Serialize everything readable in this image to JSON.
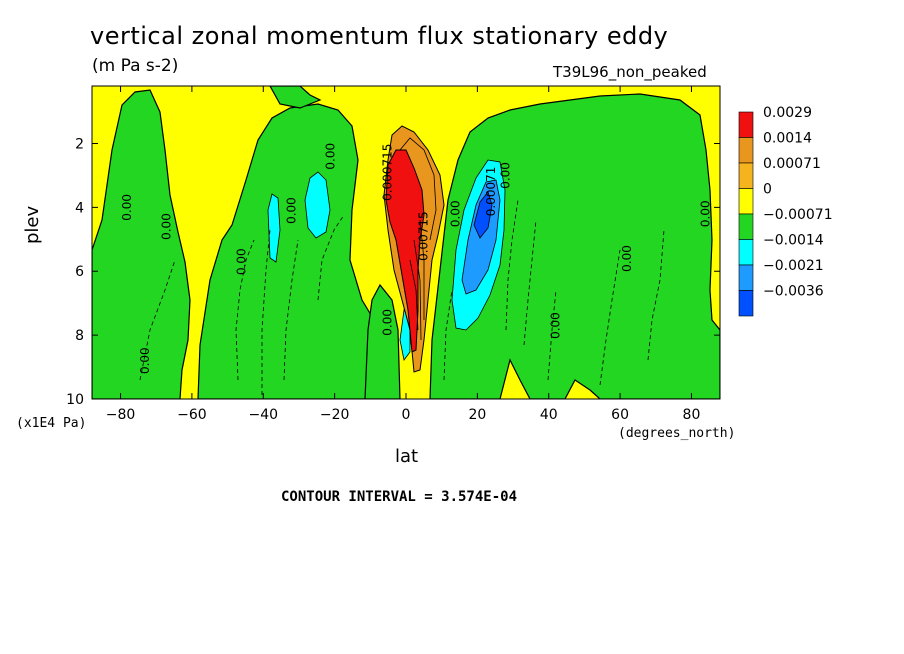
{
  "chart_data": {
    "type": "heatmap",
    "title": "vertical zonal momentum flux stationary eddy",
    "subtitle": "(m Pa s-2)",
    "dataset": "T39L96_non_peaked",
    "xlabel": "lat",
    "ylabel": "plev",
    "x_units": "(degrees_north)",
    "y_units": "(x1E4 Pa)",
    "xlim": [
      -88,
      88
    ],
    "ylim": [
      10,
      0.2
    ],
    "x_ticks": [
      -80,
      -60,
      -40,
      -20,
      0,
      20,
      40,
      60,
      80
    ],
    "y_ticks": [
      2,
      4,
      6,
      8,
      10
    ],
    "contour_interval_text": "CONTOUR INTERVAL = 3.574E-04",
    "legend": {
      "placement": "right",
      "levels": [
        {
          "label": "0.0029",
          "color": "#f01010"
        },
        {
          "label": "0.0014",
          "color": "#e8961e"
        },
        {
          "label": "0.00071",
          "color": "#f5b41e"
        },
        {
          "label": "0",
          "color": "#ffff00"
        },
        {
          "label": "-0.00071",
          "color": "#22d622"
        },
        {
          "label": "-0.0014",
          "color": "#00ffff"
        },
        {
          "label": "-0.0021",
          "color": "#1e9bff"
        },
        {
          "label": "-0.0036",
          "color": "#0050ff"
        }
      ]
    },
    "contour_labels": [
      {
        "text": "0.00",
        "lat": -77,
        "plev": 4.0
      },
      {
        "text": "0.00",
        "lat": -66,
        "plev": 4.6
      },
      {
        "text": "0.00",
        "lat": -72,
        "plev": 8.8
      },
      {
        "text": "0.00",
        "lat": -45,
        "plev": 5.7
      },
      {
        "text": "0.00",
        "lat": -31,
        "plev": 4.1
      },
      {
        "text": "0.00",
        "lat": -20,
        "plev": 2.4
      },
      {
        "text": "0.000715",
        "lat": -4,
        "plev": 2.9
      },
      {
        "text": "0.00",
        "lat": -4,
        "plev": 7.6
      },
      {
        "text": "0.00715",
        "lat": 6,
        "plev": 4.9
      },
      {
        "text": "0.00",
        "lat": 15,
        "plev": 4.2
      },
      {
        "text": "0.00071",
        "lat": 25,
        "plev": 3.5
      },
      {
        "text": "0.00",
        "lat": 29,
        "plev": 3.0
      },
      {
        "text": "0.00",
        "lat": 43,
        "plev": 7.7
      },
      {
        "text": "0.00",
        "lat": 63,
        "plev": 5.6
      },
      {
        "text": "0.00",
        "lat": 85,
        "plev": 4.2
      }
    ]
  }
}
